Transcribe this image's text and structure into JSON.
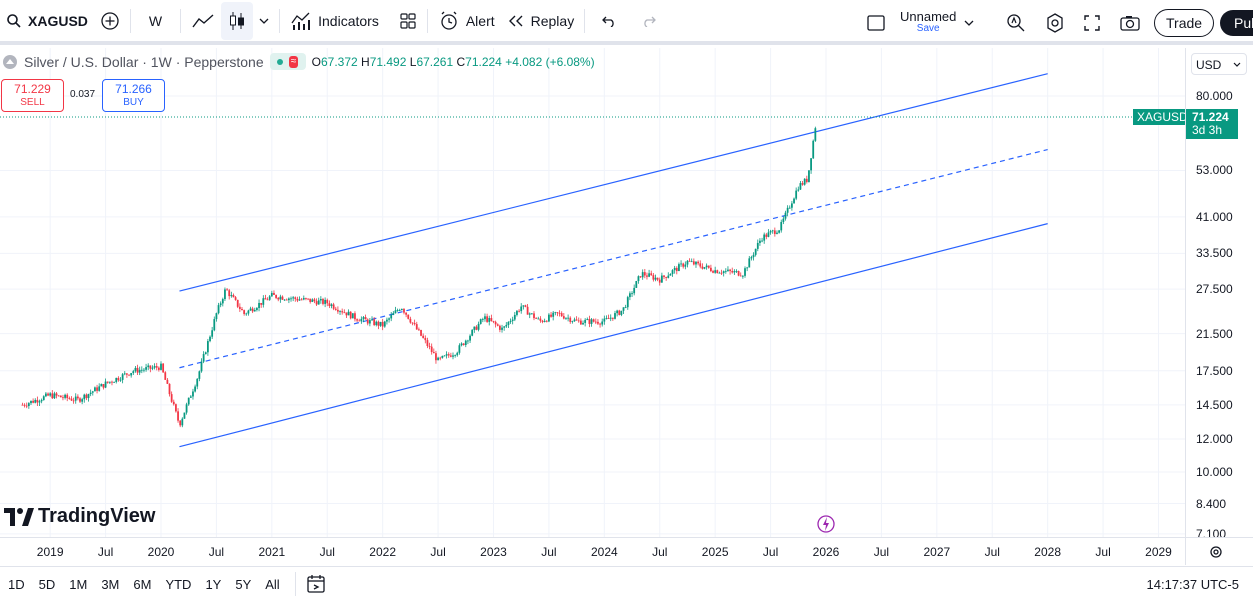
{
  "toolbar": {
    "symbol": "XAGUSD",
    "interval": "W",
    "indicators_label": "Indicators",
    "alert_label": "Alert",
    "replay_label": "Replay",
    "layout_name": "Unnamed",
    "save_label": "Save",
    "trade_label": "Trade",
    "publish_label": "Pub"
  },
  "legend": {
    "title": "Silver / U.S. Dollar · 1W · Pepperstone",
    "open_key": "O",
    "open": "67.372",
    "high_key": "H",
    "high": "71.492",
    "low_key": "L",
    "low": "67.261",
    "close_key": "C",
    "close": "71.224",
    "change": "+4.082 (+6.08%)"
  },
  "quote": {
    "sell_price": "71.229",
    "sell_label": "SELL",
    "spread": "0.037",
    "buy_price": "71.266",
    "buy_label": "BUY"
  },
  "logo_text": "TradingView",
  "price_axis": {
    "currency": "USD",
    "labels": [
      "80.000",
      "53.000",
      "41.000",
      "33.500",
      "27.500",
      "21.500",
      "17.500",
      "14.500",
      "12.000",
      "10.000",
      "8.400",
      "7.100"
    ],
    "current_symbol": "XAGUSD",
    "current_price": "71.224",
    "countdown": "3d 3h"
  },
  "time_axis": {
    "labels": [
      "2019",
      "Jul",
      "2020",
      "Jul",
      "2021",
      "Jul",
      "2022",
      "Jul",
      "2023",
      "Jul",
      "2024",
      "Jul",
      "2025",
      "Jul",
      "2026",
      "Jul",
      "2027",
      "Jul",
      "2028",
      "Jul",
      "2029"
    ]
  },
  "bottom_bar": {
    "ranges": [
      "1D",
      "5D",
      "1M",
      "3M",
      "6M",
      "YTD",
      "1Y",
      "5Y",
      "All"
    ],
    "clock": "14:17:37 UTC-5"
  },
  "colors": {
    "up": "#089981",
    "down": "#f23645",
    "channel": "#2962ff",
    "current_price": "#089981"
  },
  "chart_data": {
    "type": "candlestick",
    "log_scale": true,
    "price_range": [
      7.1,
      90
    ],
    "x": [
      "2018-10",
      "2019-01",
      "2019-04",
      "2019-07",
      "2019-10",
      "2020-01",
      "2020-03",
      "2020-05",
      "2020-07",
      "2020-08",
      "2020-10",
      "2021-01",
      "2021-04",
      "2021-07",
      "2021-10",
      "2022-01",
      "2022-03",
      "2022-05",
      "2022-07",
      "2022-09",
      "2022-12",
      "2023-02",
      "2023-04",
      "2023-06",
      "2023-08",
      "2023-10",
      "2024-01",
      "2024-03",
      "2024-05",
      "2024-07",
      "2024-10",
      "2025-01",
      "2025-04",
      "2025-06",
      "2025-08",
      "2025-10",
      "2025-11",
      "2025-12"
    ],
    "close": [
      14.5,
      15.3,
      14.9,
      16.3,
      17.5,
      17.9,
      13.0,
      17.0,
      24.0,
      27.5,
      24.0,
      26.5,
      26.0,
      25.5,
      23.5,
      22.5,
      25.0,
      21.5,
      18.5,
      19.5,
      23.5,
      22.0,
      25.0,
      23.0,
      24.0,
      23.0,
      23.0,
      24.5,
      30.0,
      29.0,
      32.0,
      30.5,
      30.0,
      36.5,
      38.5,
      48.5,
      50.5,
      71.224
    ],
    "channel": {
      "upper": {
        "start": [
          "2020-03",
          27.2
        ],
        "end": [
          "2028-01",
          90.5
        ]
      },
      "middle": {
        "start": [
          "2020-03",
          17.8
        ],
        "end": [
          "2028-01",
          59.5
        ]
      },
      "lower": {
        "start": [
          "2020-03",
          11.5
        ],
        "end": [
          "2028-01",
          39.5
        ]
      }
    },
    "last_price": 71.224
  }
}
